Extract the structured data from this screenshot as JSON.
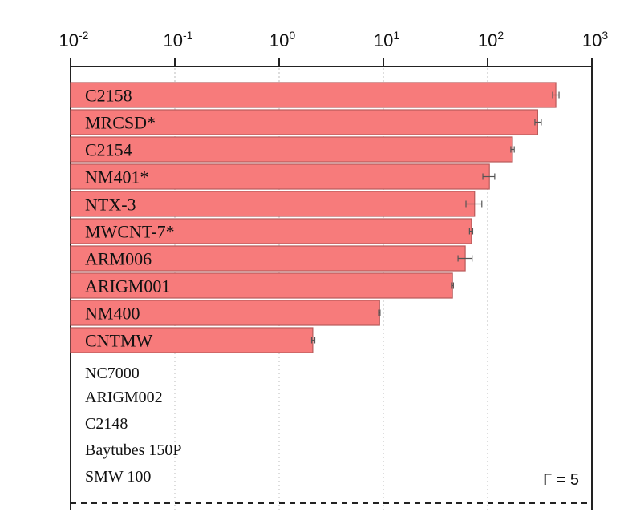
{
  "chart_data": {
    "type": "bar",
    "orientation": "horizontal",
    "x_scale": "log",
    "xlim": [
      0.01,
      1000
    ],
    "x_ticks": [
      {
        "base": "10",
        "exp": "-2",
        "value": 0.01
      },
      {
        "base": "10",
        "exp": "-1",
        "value": 0.1
      },
      {
        "base": "10",
        "exp": "0",
        "value": 1
      },
      {
        "base": "10",
        "exp": "1",
        "value": 10
      },
      {
        "base": "10",
        "exp": "2",
        "value": 100
      },
      {
        "base": "10",
        "exp": "3",
        "value": 1000
      }
    ],
    "grid": "vertical dotted at decades",
    "bar_color": "#f77b7b",
    "bar_edge_color": "#b85a5a",
    "series": [
      {
        "category": "C2158",
        "value": 451,
        "err_low": 420,
        "err_high": 484
      },
      {
        "category": "MRCSD*",
        "value": 302,
        "err_low": 284,
        "err_high": 327
      },
      {
        "category": "C2154",
        "value": 173,
        "err_low": 167,
        "err_high": 180
      },
      {
        "category": "NM401*",
        "value": 104,
        "err_low": 90,
        "err_high": 117
      },
      {
        "category": "NTX-3",
        "value": 75,
        "err_low": 62,
        "err_high": 88
      },
      {
        "category": "MWCNT-7*",
        "value": 70,
        "err_low": 67,
        "err_high": 72
      },
      {
        "category": "ARM006",
        "value": 61,
        "err_low": 52,
        "err_high": 71
      },
      {
        "category": "ARIGM001",
        "value": 46,
        "err_low": 45,
        "err_high": 47
      },
      {
        "category": "NM400",
        "value": 9.2,
        "err_low": 9.0,
        "err_high": 9.3
      },
      {
        "category": "CNTMW",
        "value": 2.1,
        "err_low": 2.05,
        "err_high": 2.2
      }
    ],
    "zero_categories": [
      "NC7000",
      "ARIGM002",
      "C2148",
      "Baytubes 150P",
      "SMW 100"
    ],
    "annotation": "Γ = 5"
  }
}
